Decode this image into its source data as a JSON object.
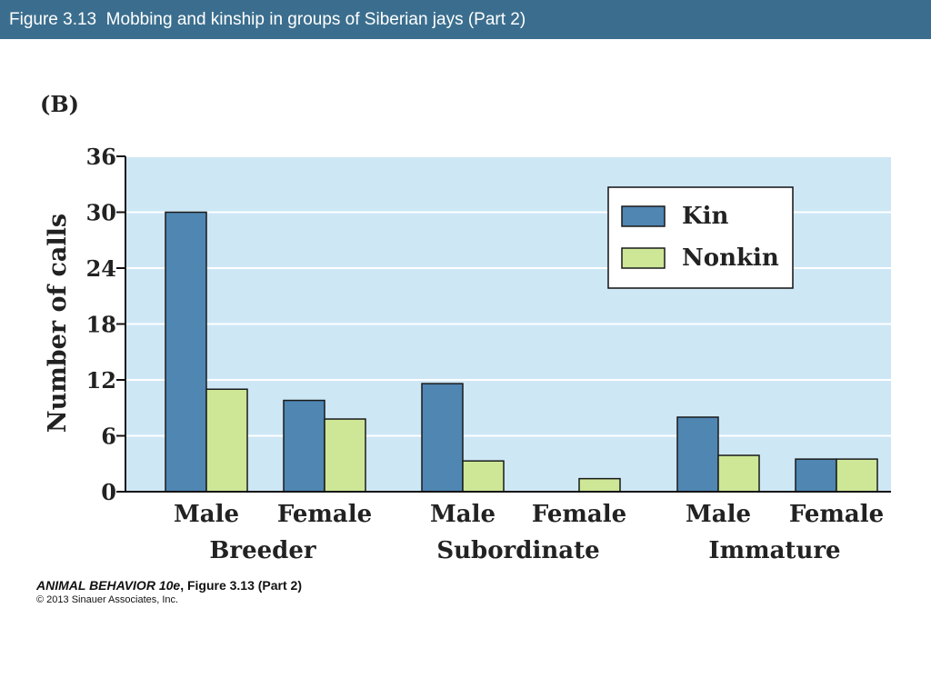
{
  "header": {
    "title": "Figure 3.13  Mobbing and kinship in groups of Siberian jays (Part 2)"
  },
  "panel_label": "(B)",
  "chart_data": {
    "type": "bar",
    "categories": [
      "Male",
      "Female",
      "Male",
      "Female",
      "Male",
      "Female"
    ],
    "groups": [
      "Breeder",
      "Subordinate",
      "Immature"
    ],
    "series": [
      {
        "name": "Kin",
        "color": "#4f86b2",
        "values": [
          30,
          9.8,
          11.6,
          0,
          8,
          3.5
        ]
      },
      {
        "name": "Nonkin",
        "color": "#cde796",
        "values": [
          11,
          7.8,
          3.3,
          1.4,
          3.9,
          3.5
        ]
      }
    ],
    "title": "",
    "xlabel": "",
    "ylabel": "Number of calls",
    "ylim": [
      0,
      36
    ],
    "yticks": [
      0,
      6,
      12,
      18,
      24,
      30,
      36
    ],
    "grid": true,
    "legend": "top-right",
    "plot_background": "#cde7f5"
  },
  "credit": {
    "book_title": "ANIMAL BEHAVIOR 10e",
    "figure_ref": ", Figure 3.13 (Part 2)",
    "copyright": "© 2013 Sinauer Associates, Inc."
  }
}
